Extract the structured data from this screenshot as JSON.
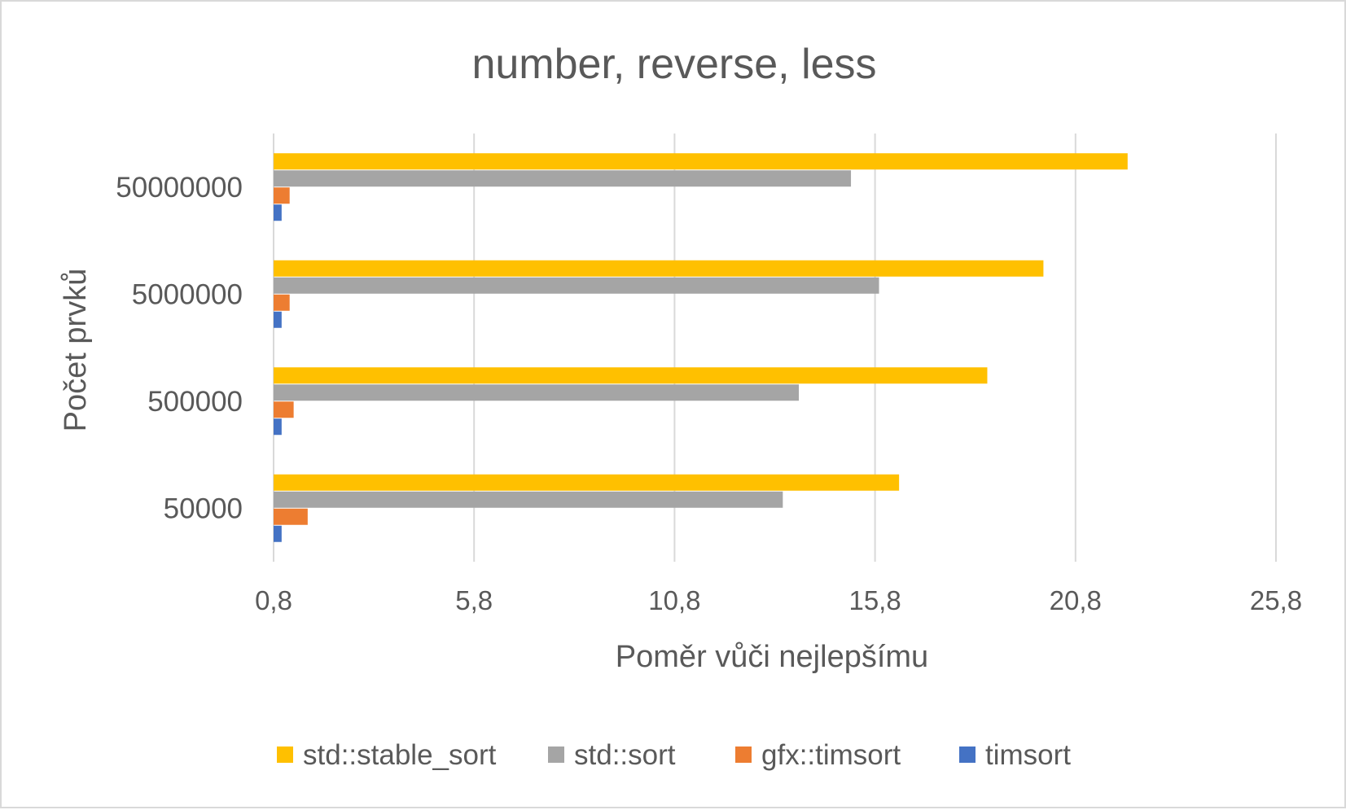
{
  "chart_data": {
    "type": "bar",
    "orientation": "horizontal",
    "title": "number, reverse, less",
    "xlabel": "Poměr vůči nejlepšímu",
    "ylabel": "Počet prvků",
    "xlim": [
      0.8,
      25.8
    ],
    "xticks": [
      0.8,
      5.8,
      10.8,
      15.8,
      20.8,
      25.8
    ],
    "xtick_labels": [
      "0,8",
      "5,8",
      "10,8",
      "15,8",
      "20,8",
      "25,8"
    ],
    "grid": true,
    "legend_position": "bottom",
    "categories": [
      "50000",
      "500000",
      "5000000",
      "50000000"
    ],
    "series": [
      {
        "name": "timsort",
        "color": "#4472c4",
        "values": [
          1.0,
          1.0,
          1.0,
          1.0
        ]
      },
      {
        "name": "gfx::timsort",
        "color": "#ed7d31",
        "values": [
          1.65,
          1.3,
          1.2,
          1.2
        ]
      },
      {
        "name": "std::sort",
        "color": "#a5a5a5",
        "values": [
          13.5,
          13.9,
          15.9,
          15.2
        ]
      },
      {
        "name": "std::stable_sort",
        "color": "#ffc000",
        "values": [
          16.4,
          18.6,
          20.0,
          22.1
        ]
      }
    ],
    "legend_order": [
      "std::stable_sort",
      "std::sort",
      "gfx::timsort",
      "timsort"
    ]
  }
}
